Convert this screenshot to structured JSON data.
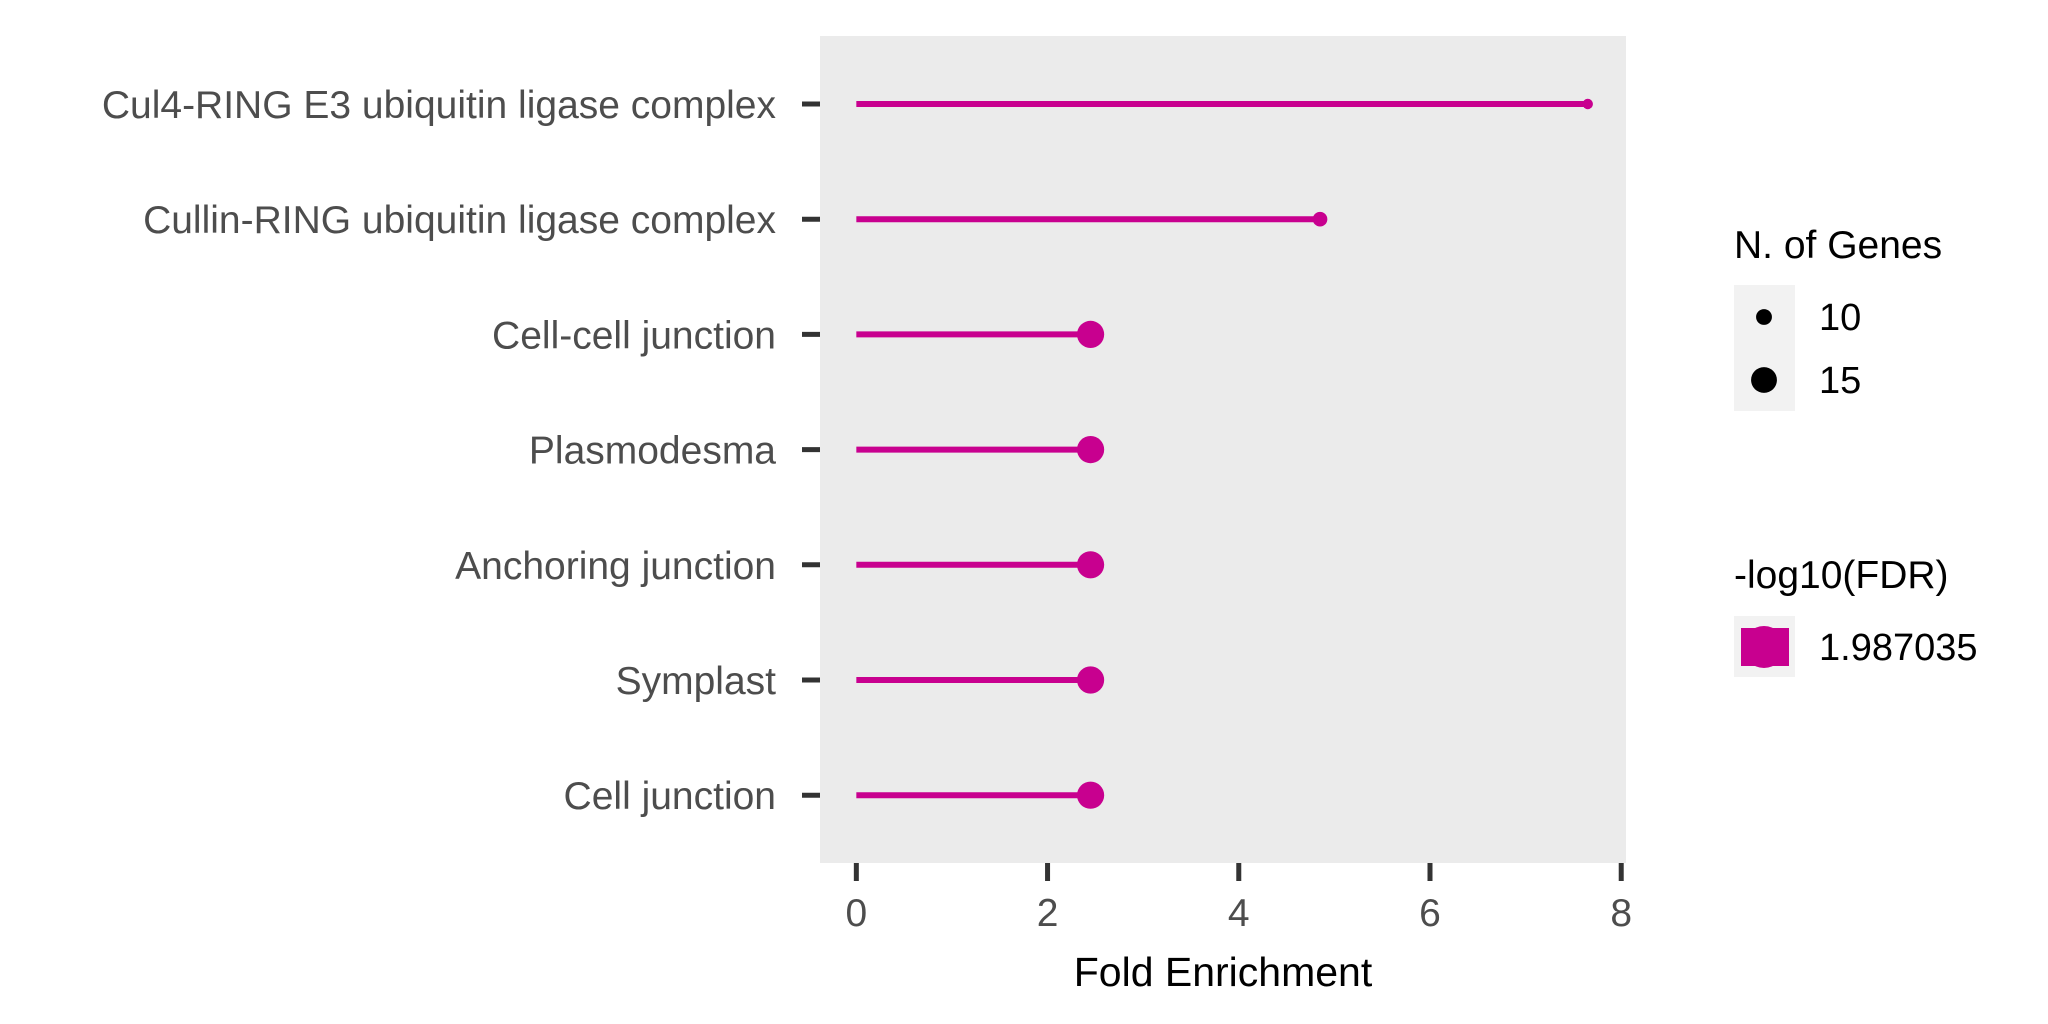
{
  "chart_data": {
    "type": "lollipop",
    "categories": [
      "Cul4-RING E3 ubiquitin ligase complex",
      "Cullin-RING ubiquitin ligase complex",
      "Cell-cell junction",
      "Plasmodesma",
      "Anchoring junction",
      "Symplast",
      "Cell junction"
    ],
    "values": [
      7.65,
      4.85,
      2.45,
      2.45,
      2.45,
      2.45,
      2.45
    ],
    "n_genes": [
      7,
      9,
      15,
      15,
      15,
      15,
      15
    ],
    "fdr": [
      1.987035,
      1.987035,
      1.987035,
      1.987035,
      1.987035,
      1.987035,
      1.987035
    ],
    "xlabel": "Fold Enrichment",
    "xlim": [
      -0.38,
      8.05
    ],
    "xticks": [
      "0",
      "2",
      "4",
      "6",
      "8"
    ],
    "grid": false,
    "panel_background": "#ebebeb",
    "accent_color": "#c8008f",
    "legend_position": "right",
    "legend": {
      "size_title": "N. of Genes",
      "size_entries": [
        {
          "label": "10",
          "n": 10
        },
        {
          "label": "15",
          "n": 15
        }
      ],
      "color_title": "-log10(FDR)",
      "color_entries": [
        {
          "label": "1.987035"
        }
      ]
    }
  }
}
